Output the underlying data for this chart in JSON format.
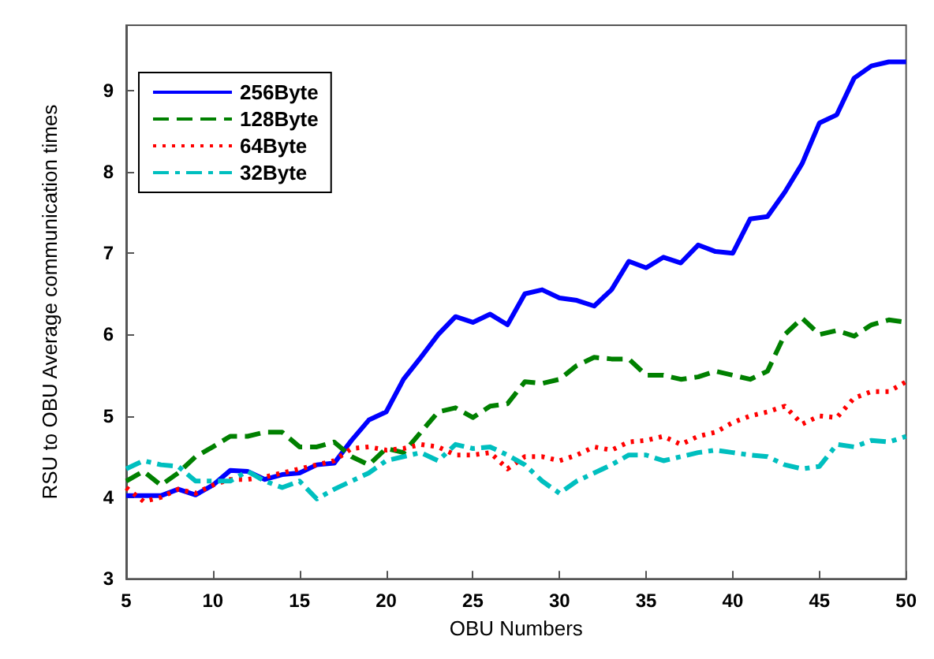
{
  "chart_data": {
    "type": "line",
    "xlabel": "OBU Numbers",
    "ylabel": "RSU to OBU Average communication times",
    "x": [
      5,
      6,
      7,
      8,
      9,
      10,
      11,
      12,
      13,
      14,
      15,
      16,
      17,
      18,
      19,
      20,
      21,
      22,
      23,
      24,
      25,
      26,
      27,
      28,
      29,
      30,
      31,
      32,
      33,
      34,
      35,
      36,
      37,
      38,
      39,
      40,
      41,
      42,
      43,
      44,
      45,
      46,
      47,
      48,
      49,
      50
    ],
    "series": [
      {
        "name": "256Byte",
        "color": "#0000ff",
        "line_style": "solid",
        "values": [
          4.02,
          4.02,
          4.02,
          4.1,
          4.03,
          4.15,
          4.33,
          4.32,
          4.22,
          4.28,
          4.3,
          4.4,
          4.42,
          4.7,
          4.95,
          5.05,
          5.45,
          5.72,
          6.0,
          6.22,
          6.15,
          6.25,
          6.12,
          6.5,
          6.55,
          6.45,
          6.42,
          6.35,
          6.55,
          6.9,
          6.82,
          6.95,
          6.88,
          7.1,
          7.02,
          7.0,
          7.42,
          7.45,
          7.75,
          8.1,
          8.6,
          8.7,
          9.15,
          9.3,
          9.35,
          9.35
        ]
      },
      {
        "name": "128Byte",
        "color": "#008000",
        "line_style": "dashed",
        "values": [
          4.2,
          4.32,
          4.15,
          4.3,
          4.5,
          4.62,
          4.75,
          4.75,
          4.8,
          4.8,
          4.62,
          4.62,
          4.68,
          4.5,
          4.4,
          4.6,
          4.55,
          4.8,
          5.05,
          5.1,
          4.98,
          5.12,
          5.15,
          5.42,
          5.4,
          5.45,
          5.62,
          5.72,
          5.7,
          5.7,
          5.5,
          5.5,
          5.45,
          5.48,
          5.55,
          5.5,
          5.45,
          5.55,
          6.0,
          6.2,
          6.0,
          6.05,
          5.98,
          6.12,
          6.18,
          6.15
        ]
      },
      {
        "name": "64Byte",
        "color": "#ff0000",
        "line_style": "dotted",
        "values": [
          4.12,
          3.95,
          4.0,
          4.1,
          4.05,
          4.15,
          4.22,
          4.22,
          4.25,
          4.3,
          4.35,
          4.4,
          4.45,
          4.6,
          4.62,
          4.58,
          4.6,
          4.65,
          4.62,
          4.52,
          4.52,
          4.55,
          4.35,
          4.5,
          4.5,
          4.45,
          4.52,
          4.62,
          4.58,
          4.68,
          4.7,
          4.75,
          4.65,
          4.75,
          4.8,
          4.92,
          5.0,
          5.05,
          5.12,
          4.9,
          5.0,
          4.98,
          5.22,
          5.3,
          5.3,
          5.42
        ]
      },
      {
        "name": "32Byte",
        "color": "#00bfbf",
        "line_style": "dashdot",
        "values": [
          4.35,
          4.45,
          4.4,
          4.38,
          4.2,
          4.2,
          4.2,
          4.32,
          4.2,
          4.12,
          4.2,
          3.98,
          4.1,
          4.2,
          4.3,
          4.45,
          4.5,
          4.55,
          4.45,
          4.65,
          4.6,
          4.62,
          4.52,
          4.4,
          4.2,
          4.05,
          4.2,
          4.3,
          4.4,
          4.52,
          4.52,
          4.45,
          4.5,
          4.55,
          4.58,
          4.55,
          4.52,
          4.5,
          4.4,
          4.35,
          4.38,
          4.65,
          4.62,
          4.7,
          4.68,
          4.75
        ]
      }
    ],
    "xlim": [
      5,
      50
    ],
    "xticks": [
      5,
      10,
      15,
      20,
      25,
      30,
      35,
      40,
      45,
      50
    ],
    "ylim": [
      3,
      9.8
    ],
    "yticks": [
      3,
      4,
      5,
      6,
      7,
      8,
      9
    ],
    "grid": false,
    "legend": "top left",
    "marker": "none"
  }
}
